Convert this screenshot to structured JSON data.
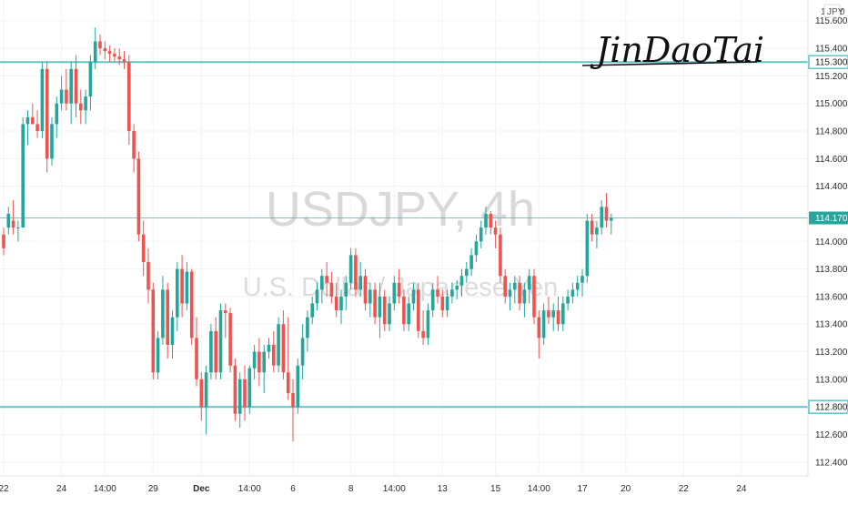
{
  "chart_data": {
    "type": "candlestick",
    "watermark": {
      "symbol": "USDJPY, 4h",
      "description": "U.S. Dollar / Japanese Yen"
    },
    "currency_badge": {
      "multiplier": "1",
      "currency": "JPY",
      "count": "0"
    },
    "signature": "JinDaoTai",
    "price_axis": {
      "ticks": [
        "115.600",
        "115.400",
        "115.200",
        "115.000",
        "114.800",
        "114.600",
        "114.400",
        "114.000",
        "113.800",
        "113.600",
        "113.400",
        "113.200",
        "113.000",
        "112.600",
        "112.400"
      ],
      "ylim": [
        112.3,
        115.75
      ]
    },
    "horizontal_levels": [
      {
        "value": 115.3,
        "label": "115.300",
        "color": "#5fc4c9"
      },
      {
        "value": 112.8,
        "label": "112.800",
        "color": "#5fc4c9"
      }
    ],
    "last_price": {
      "value": 114.17,
      "label": "114.170",
      "color": "#26a69a"
    },
    "time_axis": [
      {
        "label": "22",
        "bar": 0
      },
      {
        "label": "24",
        "bar": 12
      },
      {
        "label": "14:00",
        "bar": 21
      },
      {
        "label": "29",
        "bar": 31
      },
      {
        "label": "Dec",
        "bar": 41,
        "bold": true
      },
      {
        "label": "14:00",
        "bar": 51
      },
      {
        "label": "6",
        "bar": 60
      },
      {
        "label": "8",
        "bar": 72
      },
      {
        "label": "14:00",
        "bar": 81
      },
      {
        "label": "13",
        "bar": 91
      },
      {
        "label": "15",
        "bar": 102
      },
      {
        "label": "14:00",
        "bar": 111
      },
      {
        "label": "17",
        "bar": 120
      },
      {
        "label": "20",
        "bar": 129
      },
      {
        "label": "22",
        "bar": 141
      },
      {
        "label": "24",
        "bar": 153
      }
    ],
    "colors": {
      "up": "#26a69a",
      "down": "#ef5350",
      "grid": "#f0f3fa"
    },
    "candles": [
      [
        114.05,
        114.1,
        113.9,
        113.95
      ],
      [
        114.1,
        114.25,
        114.05,
        114.2
      ],
      [
        114.15,
        114.3,
        114.05,
        114.1
      ],
      [
        114.1,
        114.15,
        114.0,
        114.1
      ],
      [
        114.1,
        114.9,
        114.1,
        114.85
      ],
      [
        114.85,
        114.95,
        114.7,
        114.9
      ],
      [
        114.9,
        115.0,
        114.85,
        114.85
      ],
      [
        114.85,
        114.95,
        114.75,
        114.8
      ],
      [
        114.8,
        115.3,
        114.75,
        115.25
      ],
      [
        115.25,
        115.3,
        114.5,
        114.6
      ],
      [
        114.6,
        114.9,
        114.55,
        114.85
      ],
      [
        114.85,
        115.05,
        114.75,
        115.0
      ],
      [
        115.0,
        115.2,
        114.95,
        115.1
      ],
      [
        115.1,
        115.25,
        114.95,
        115.0
      ],
      [
        115.0,
        115.3,
        114.85,
        115.25
      ],
      [
        115.25,
        115.35,
        114.9,
        115.0
      ],
      [
        115.0,
        115.1,
        114.85,
        114.95
      ],
      [
        114.95,
        115.1,
        114.85,
        115.05
      ],
      [
        115.05,
        115.35,
        114.95,
        115.3
      ],
      [
        115.3,
        115.55,
        115.25,
        115.45
      ],
      [
        115.45,
        115.5,
        115.35,
        115.4
      ],
      [
        115.4,
        115.45,
        115.32,
        115.38
      ],
      [
        115.38,
        115.42,
        115.3,
        115.36
      ],
      [
        115.36,
        115.4,
        115.3,
        115.34
      ],
      [
        115.34,
        115.4,
        115.28,
        115.32
      ],
      [
        115.32,
        115.38,
        115.25,
        115.3
      ],
      [
        115.3,
        115.35,
        114.7,
        114.8
      ],
      [
        114.8,
        114.85,
        114.5,
        114.6
      ],
      [
        114.6,
        114.65,
        114.0,
        114.05
      ],
      [
        114.05,
        114.15,
        113.75,
        113.85
      ],
      [
        113.85,
        113.95,
        113.55,
        113.65
      ],
      [
        113.65,
        113.7,
        113.0,
        113.05
      ],
      [
        113.05,
        113.35,
        113.0,
        113.3
      ],
      [
        113.3,
        113.75,
        113.25,
        113.65
      ],
      [
        113.65,
        113.7,
        113.15,
        113.25
      ],
      [
        113.25,
        113.5,
        113.15,
        113.45
      ],
      [
        113.45,
        113.85,
        113.35,
        113.8
      ],
      [
        113.8,
        113.9,
        113.45,
        113.55
      ],
      [
        113.55,
        113.85,
        113.5,
        113.78
      ],
      [
        113.78,
        113.8,
        113.25,
        113.3
      ],
      [
        113.3,
        113.45,
        112.95,
        113.0
      ],
      [
        113.0,
        113.05,
        112.7,
        112.8
      ],
      [
        112.8,
        113.1,
        112.6,
        113.05
      ],
      [
        113.05,
        113.4,
        113.0,
        113.35
      ],
      [
        113.35,
        113.45,
        113.0,
        113.05
      ],
      [
        113.05,
        113.55,
        113.0,
        113.5
      ],
      [
        113.5,
        113.55,
        113.3,
        113.48
      ],
      [
        113.48,
        113.52,
        113.05,
        113.1
      ],
      [
        113.1,
        113.15,
        112.7,
        112.75
      ],
      [
        112.75,
        113.05,
        112.65,
        113.0
      ],
      [
        113.0,
        113.1,
        112.7,
        112.8
      ],
      [
        112.8,
        113.1,
        112.75,
        113.08
      ],
      [
        113.08,
        113.25,
        113.0,
        113.2
      ],
      [
        113.2,
        113.3,
        112.95,
        113.05
      ],
      [
        113.05,
        113.25,
        112.9,
        113.2
      ],
      [
        113.2,
        113.3,
        113.15,
        113.25
      ],
      [
        113.25,
        113.35,
        113.05,
        113.1
      ],
      [
        113.1,
        113.45,
        113.05,
        113.4
      ],
      [
        113.4,
        113.5,
        113.0,
        113.05
      ],
      [
        113.05,
        113.45,
        112.85,
        112.9
      ],
      [
        112.9,
        113.0,
        112.55,
        112.8
      ],
      [
        112.8,
        113.15,
        112.75,
        113.1
      ],
      [
        113.1,
        113.4,
        113.0,
        113.3
      ],
      [
        113.3,
        113.5,
        113.2,
        113.45
      ],
      [
        113.45,
        113.6,
        113.4,
        113.55
      ],
      [
        113.55,
        113.7,
        113.5,
        113.65
      ],
      [
        113.65,
        113.8,
        113.55,
        113.75
      ],
      [
        113.75,
        113.85,
        113.6,
        113.7
      ],
      [
        113.7,
        113.78,
        113.55,
        113.6
      ],
      [
        113.6,
        113.7,
        113.45,
        113.5
      ],
      [
        113.5,
        113.65,
        113.4,
        113.6
      ],
      [
        113.6,
        113.75,
        113.5,
        113.7
      ],
      [
        113.7,
        113.95,
        113.65,
        113.9
      ],
      [
        113.9,
        113.95,
        113.6,
        113.65
      ],
      [
        113.65,
        113.85,
        113.6,
        113.75
      ],
      [
        113.75,
        113.8,
        113.5,
        113.55
      ],
      [
        113.55,
        113.7,
        113.45,
        113.65
      ],
      [
        113.65,
        113.7,
        113.4,
        113.45
      ],
      [
        113.45,
        113.7,
        113.3,
        113.6
      ],
      [
        113.6,
        113.65,
        113.35,
        113.4
      ],
      [
        113.4,
        113.6,
        113.35,
        113.55
      ],
      [
        113.55,
        113.75,
        113.5,
        113.7
      ],
      [
        113.7,
        113.8,
        113.55,
        113.6
      ],
      [
        113.6,
        113.65,
        113.35,
        113.4
      ],
      [
        113.4,
        113.6,
        113.35,
        113.55
      ],
      [
        113.55,
        113.7,
        113.5,
        113.65
      ],
      [
        113.65,
        113.7,
        113.3,
        113.35
      ],
      [
        113.35,
        113.5,
        113.25,
        113.3
      ],
      [
        113.3,
        113.55,
        113.25,
        113.5
      ],
      [
        113.5,
        113.7,
        113.45,
        113.65
      ],
      [
        113.65,
        113.75,
        113.55,
        113.6
      ],
      [
        113.6,
        113.65,
        113.45,
        113.5
      ],
      [
        113.5,
        113.65,
        113.45,
        113.6
      ],
      [
        113.6,
        113.7,
        113.55,
        113.65
      ],
      [
        113.65,
        113.72,
        113.58,
        113.68
      ],
      [
        113.68,
        113.8,
        113.6,
        113.75
      ],
      [
        113.75,
        113.85,
        113.7,
        113.8
      ],
      [
        113.8,
        113.95,
        113.75,
        113.9
      ],
      [
        113.9,
        114.05,
        113.85,
        114.0
      ],
      [
        114.0,
        114.15,
        113.95,
        114.1
      ],
      [
        114.1,
        114.25,
        114.05,
        114.2
      ],
      [
        114.2,
        114.22,
        114.05,
        114.1
      ],
      [
        114.1,
        114.15,
        113.95,
        114.05
      ],
      [
        114.05,
        114.1,
        113.7,
        113.75
      ],
      [
        113.75,
        113.8,
        113.55,
        113.6
      ],
      [
        113.6,
        113.7,
        113.5,
        113.65
      ],
      [
        113.65,
        113.75,
        113.55,
        113.7
      ],
      [
        113.7,
        113.75,
        113.5,
        113.55
      ],
      [
        113.55,
        113.7,
        113.45,
        113.65
      ],
      [
        113.65,
        113.8,
        113.55,
        113.75
      ],
      [
        113.75,
        113.8,
        113.4,
        113.45
      ],
      [
        113.45,
        113.5,
        113.15,
        113.3
      ],
      [
        113.3,
        113.55,
        113.25,
        113.5
      ],
      [
        113.5,
        113.6,
        113.4,
        113.45
      ],
      [
        113.45,
        113.55,
        113.35,
        113.5
      ],
      [
        113.5,
        113.6,
        113.35,
        113.4
      ],
      [
        113.4,
        113.6,
        113.35,
        113.55
      ],
      [
        113.55,
        113.65,
        113.5,
        113.6
      ],
      [
        113.6,
        113.7,
        113.55,
        113.65
      ],
      [
        113.65,
        113.75,
        113.6,
        113.7
      ],
      [
        113.7,
        113.8,
        113.6,
        113.75
      ],
      [
        113.75,
        114.2,
        113.7,
        114.15
      ],
      [
        114.15,
        114.2,
        114.0,
        114.05
      ],
      [
        114.05,
        114.15,
        113.95,
        114.1
      ],
      [
        114.1,
        114.3,
        114.05,
        114.25
      ],
      [
        114.25,
        114.35,
        114.1,
        114.15
      ],
      [
        114.15,
        114.2,
        114.05,
        114.17
      ]
    ]
  }
}
